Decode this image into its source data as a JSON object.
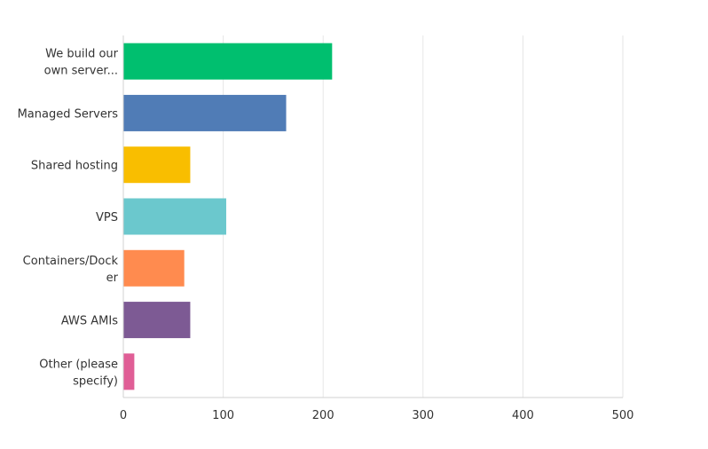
{
  "chart_data": {
    "type": "bar",
    "orientation": "horizontal",
    "categories": [
      [
        "We build our",
        "own server..."
      ],
      [
        "Managed Servers"
      ],
      [
        "Shared hosting"
      ],
      [
        "VPS"
      ],
      [
        "Containers/Dock",
        "er"
      ],
      [
        "AWS AMIs"
      ],
      [
        "Other (please",
        "specify)"
      ]
    ],
    "values": [
      209,
      163,
      67,
      103,
      61,
      67,
      11
    ],
    "colors": [
      "#00bf6f",
      "#507cb6",
      "#f9be00",
      "#6bc8cd",
      "#ff8b4f",
      "#7d5a94",
      "#e05e96"
    ],
    "xlim": [
      0,
      500
    ],
    "xticks": [
      0,
      100,
      200,
      300,
      400,
      500
    ],
    "grid": true,
    "legend": "none",
    "title": "",
    "xlabel": "",
    "ylabel": ""
  }
}
